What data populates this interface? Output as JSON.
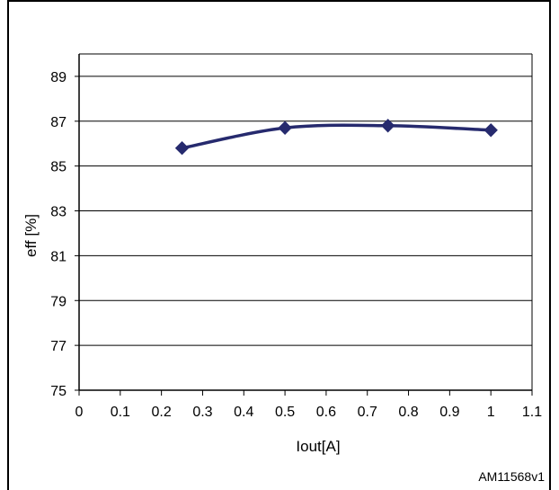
{
  "chart_data": {
    "type": "line",
    "title": "",
    "xlabel": "Iout[A]",
    "ylabel": "eff [%]",
    "xlim": [
      0,
      1.1
    ],
    "ylim": [
      75,
      90
    ],
    "x_ticks": [
      "0",
      "0.1",
      "0.2",
      "0.3",
      "0.4",
      "0.5",
      "0.6",
      "0.7",
      "0.8",
      "0.9",
      "1",
      "1.1"
    ],
    "y_ticks": [
      "75",
      "77",
      "79",
      "81",
      "83",
      "85",
      "87",
      "89"
    ],
    "grid": "horizontal",
    "series": [
      {
        "x": [
          0.25,
          0.5,
          0.75,
          1.0
        ],
        "y": [
          85.8,
          86.7,
          86.8,
          86.6
        ],
        "color": "#262a6e",
        "marker": "diamond"
      }
    ]
  },
  "figure_code": "AM11568v1"
}
